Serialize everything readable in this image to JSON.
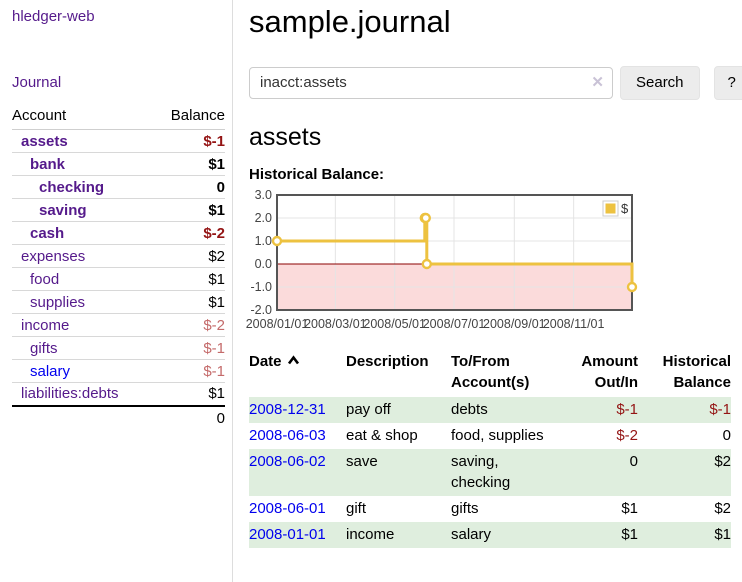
{
  "app": {
    "brand": "hledger-web",
    "nav_journal": "Journal"
  },
  "sidebar": {
    "accounts_table": {
      "col_account": "Account",
      "col_balance": "Balance",
      "rows": [
        {
          "name": "assets",
          "balance": "$-1",
          "depth": 1,
          "bold": true,
          "negative": true,
          "blue": false
        },
        {
          "name": "bank",
          "balance": "$1",
          "depth": 2,
          "bold": true,
          "negative": false,
          "blue": false
        },
        {
          "name": "checking",
          "balance": "0",
          "depth": 3,
          "bold": true,
          "negative": false,
          "blue": false
        },
        {
          "name": "saving",
          "balance": "$1",
          "depth": 3,
          "bold": true,
          "negative": false,
          "blue": false
        },
        {
          "name": "cash",
          "balance": "$-2",
          "depth": 2,
          "bold": true,
          "negative": true,
          "blue": false
        },
        {
          "name": "expenses",
          "balance": "$2",
          "depth": 1,
          "bold": false,
          "negative": false,
          "blue": false
        },
        {
          "name": "food",
          "balance": "$1",
          "depth": 2,
          "bold": false,
          "negative": false,
          "blue": false
        },
        {
          "name": "supplies",
          "balance": "$1",
          "depth": 2,
          "bold": false,
          "negative": false,
          "blue": false
        },
        {
          "name": "income",
          "balance": "$-2",
          "depth": 1,
          "bold": false,
          "negative": true,
          "blue": false
        },
        {
          "name": "gifts",
          "balance": "$-1",
          "depth": 2,
          "bold": false,
          "negative": true,
          "blue": false
        },
        {
          "name": "salary",
          "balance": "$-1",
          "depth": 2,
          "bold": false,
          "negative": true,
          "blue": true
        },
        {
          "name": "liabilities:debts",
          "balance": "$1",
          "depth": 1,
          "bold": false,
          "negative": false,
          "blue": false
        }
      ],
      "total": "0"
    }
  },
  "main": {
    "title": "sample.journal",
    "search": {
      "value": "inacct:assets",
      "clear_label": "✕",
      "search_button": "Search",
      "help_button": "?"
    },
    "account_heading": "assets",
    "chart_label": "Historical Balance:"
  },
  "chart_data": {
    "type": "line",
    "style": "step",
    "title": "Historical Balance",
    "legend": [
      {
        "name": "$",
        "color": "#EDC240"
      }
    ],
    "legend_position": "top-right",
    "x_range": [
      "2008-01-01",
      "2008-12-31"
    ],
    "ylim": [
      -2,
      3
    ],
    "y_ticks": [
      {
        "label": "3.0",
        "value": 3
      },
      {
        "label": "2.0",
        "value": 2
      },
      {
        "label": "1.0",
        "value": 1
      },
      {
        "label": "0.0",
        "value": 0
      },
      {
        "label": "-1.0",
        "value": -1
      },
      {
        "label": "-2.0",
        "value": -2
      }
    ],
    "x_ticks": [
      {
        "label": "2008/01/01",
        "date": "2008-01-01"
      },
      {
        "label": "2008/03/01",
        "date": "2008-03-01"
      },
      {
        "label": "2008/05/01",
        "date": "2008-05-01"
      },
      {
        "label": "2008/07/01",
        "date": "2008-07-01"
      },
      {
        "label": "2008/09/01",
        "date": "2008-09-01"
      },
      {
        "label": "2008/11/01",
        "date": "2008-11-01"
      }
    ],
    "series": [
      {
        "name": "$",
        "color": "#EDC240",
        "points": [
          {
            "date": "2008-01-01",
            "value": 1
          },
          {
            "date": "2008-06-01",
            "value": 2
          },
          {
            "date": "2008-06-02",
            "value": 2
          },
          {
            "date": "2008-06-03",
            "value": 0
          },
          {
            "date": "2008-12-31",
            "value": -1
          }
        ]
      }
    ],
    "grid": true,
    "grid_color": "#e4e4e4",
    "border_color": "#555555",
    "negative_region_color": "#fbdbdb",
    "zero_line_color": "#8b0000",
    "marker_fill": "#ffffff"
  },
  "register": {
    "headers": {
      "date": "Date",
      "description": "Description",
      "accounts": "To/From Account(s)",
      "amount": "Amount Out/In",
      "balance": "Historical Balance"
    },
    "sort": {
      "column": "date",
      "direction": "ascending"
    },
    "rows": [
      {
        "date": "2008-12-31",
        "description": "pay off",
        "accounts": "debts",
        "amount": "$-1",
        "balance": "$-1",
        "amount_negative": true,
        "balance_negative": true
      },
      {
        "date": "2008-06-03",
        "description": "eat & shop",
        "accounts": "food, supplies",
        "amount": "$-2",
        "balance": "0",
        "amount_negative": true,
        "balance_negative": false
      },
      {
        "date": "2008-06-02",
        "description": "save",
        "accounts": "saving, checking",
        "amount": "0",
        "balance": "$2",
        "amount_negative": false,
        "balance_negative": false
      },
      {
        "date": "2008-06-01",
        "description": "gift",
        "accounts": "gifts",
        "amount": "$1",
        "balance": "$2",
        "amount_negative": false,
        "balance_negative": false
      },
      {
        "date": "2008-01-01",
        "description": "income",
        "accounts": "salary",
        "amount": "$1",
        "balance": "$1",
        "amount_negative": false,
        "balance_negative": false
      }
    ]
  },
  "colors": {
    "link_purple": "#551A8B",
    "link_blue": "#0000EE",
    "negative_bold_red": "#941414",
    "negative_light_red": "#C46A6A",
    "row_green": "#DFEEDE",
    "button_bg": "#ECECEC",
    "chart_line_gold": "#EDC240"
  }
}
